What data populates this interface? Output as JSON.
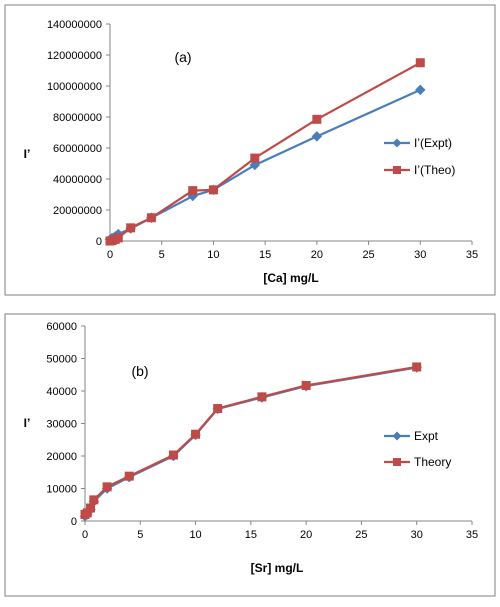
{
  "chart_data": [
    {
      "type": "line",
      "annotation": "(a)",
      "xlabel": "[Ca] mg/L",
      "ylabel": "I’",
      "xlim": [
        0,
        35
      ],
      "ylim": [
        0,
        140000000
      ],
      "xticks": [
        0,
        5,
        10,
        15,
        20,
        25,
        30,
        35
      ],
      "yticks": [
        0,
        20000000,
        40000000,
        60000000,
        80000000,
        100000000,
        120000000,
        140000000
      ],
      "xtick_labels": [
        "0",
        "5",
        "10",
        "15",
        "20",
        "25",
        "30",
        "35"
      ],
      "ytick_labels": [
        "0",
        "20000000",
        "40000000",
        "60000000",
        "80000000",
        "100000000",
        "120000000",
        "140000000"
      ],
      "legend": "right",
      "grid": false,
      "series": [
        {
          "name": "I’(Expt)",
          "marker": "diamond",
          "color": "#4a7ebb",
          "x": [
            0,
            0.2,
            0.5,
            0.8,
            2,
            4,
            8,
            10,
            14,
            20,
            30
          ],
          "y": [
            1000000,
            2000000,
            3000000,
            4500000,
            8000000,
            15000000,
            29000000,
            33000000,
            49000000,
            67500000,
            97500000
          ]
        },
        {
          "name": "I’(Theo)",
          "marker": "square",
          "color": "#be4b48",
          "x": [
            0,
            0.2,
            0.5,
            0.8,
            2,
            4,
            8,
            10,
            14,
            20,
            30
          ],
          "y": [
            0,
            300000,
            1000000,
            2000000,
            8500000,
            15000000,
            32500000,
            33000000,
            53500000,
            78500000,
            115000000
          ]
        }
      ]
    },
    {
      "type": "line",
      "annotation": "(b)",
      "xlabel": "[Sr] mg/L",
      "ylabel": "I’",
      "xlim": [
        0,
        35
      ],
      "ylim": [
        0,
        60000
      ],
      "xticks": [
        0,
        5,
        10,
        15,
        20,
        25,
        30,
        35
      ],
      "yticks": [
        0,
        10000,
        20000,
        30000,
        40000,
        50000,
        60000
      ],
      "xtick_labels": [
        "0",
        "5",
        "10",
        "15",
        "20",
        "25",
        "30",
        "35"
      ],
      "ytick_labels": [
        "0",
        "10000",
        "20000",
        "30000",
        "40000",
        "50000",
        "60000"
      ],
      "legend": "right",
      "grid": false,
      "series": [
        {
          "name": "Expt",
          "marker": "diamond",
          "color": "#4a7ebb",
          "x": [
            0,
            0.2,
            0.5,
            0.8,
            2,
            4,
            8,
            10,
            12,
            16,
            20,
            30
          ],
          "y": [
            1500,
            2000,
            3500,
            6000,
            10000,
            13500,
            20000,
            26500,
            34500,
            38000,
            41500,
            47200
          ]
        },
        {
          "name": "Theory",
          "marker": "square",
          "color": "#be4b48",
          "x": [
            0,
            0.2,
            0.5,
            0.8,
            2,
            4,
            8,
            10,
            12,
            16,
            20,
            30
          ],
          "y": [
            2000,
            2500,
            4000,
            6500,
            10500,
            13800,
            20300,
            26700,
            34600,
            38200,
            41700,
            47400
          ]
        }
      ]
    }
  ]
}
